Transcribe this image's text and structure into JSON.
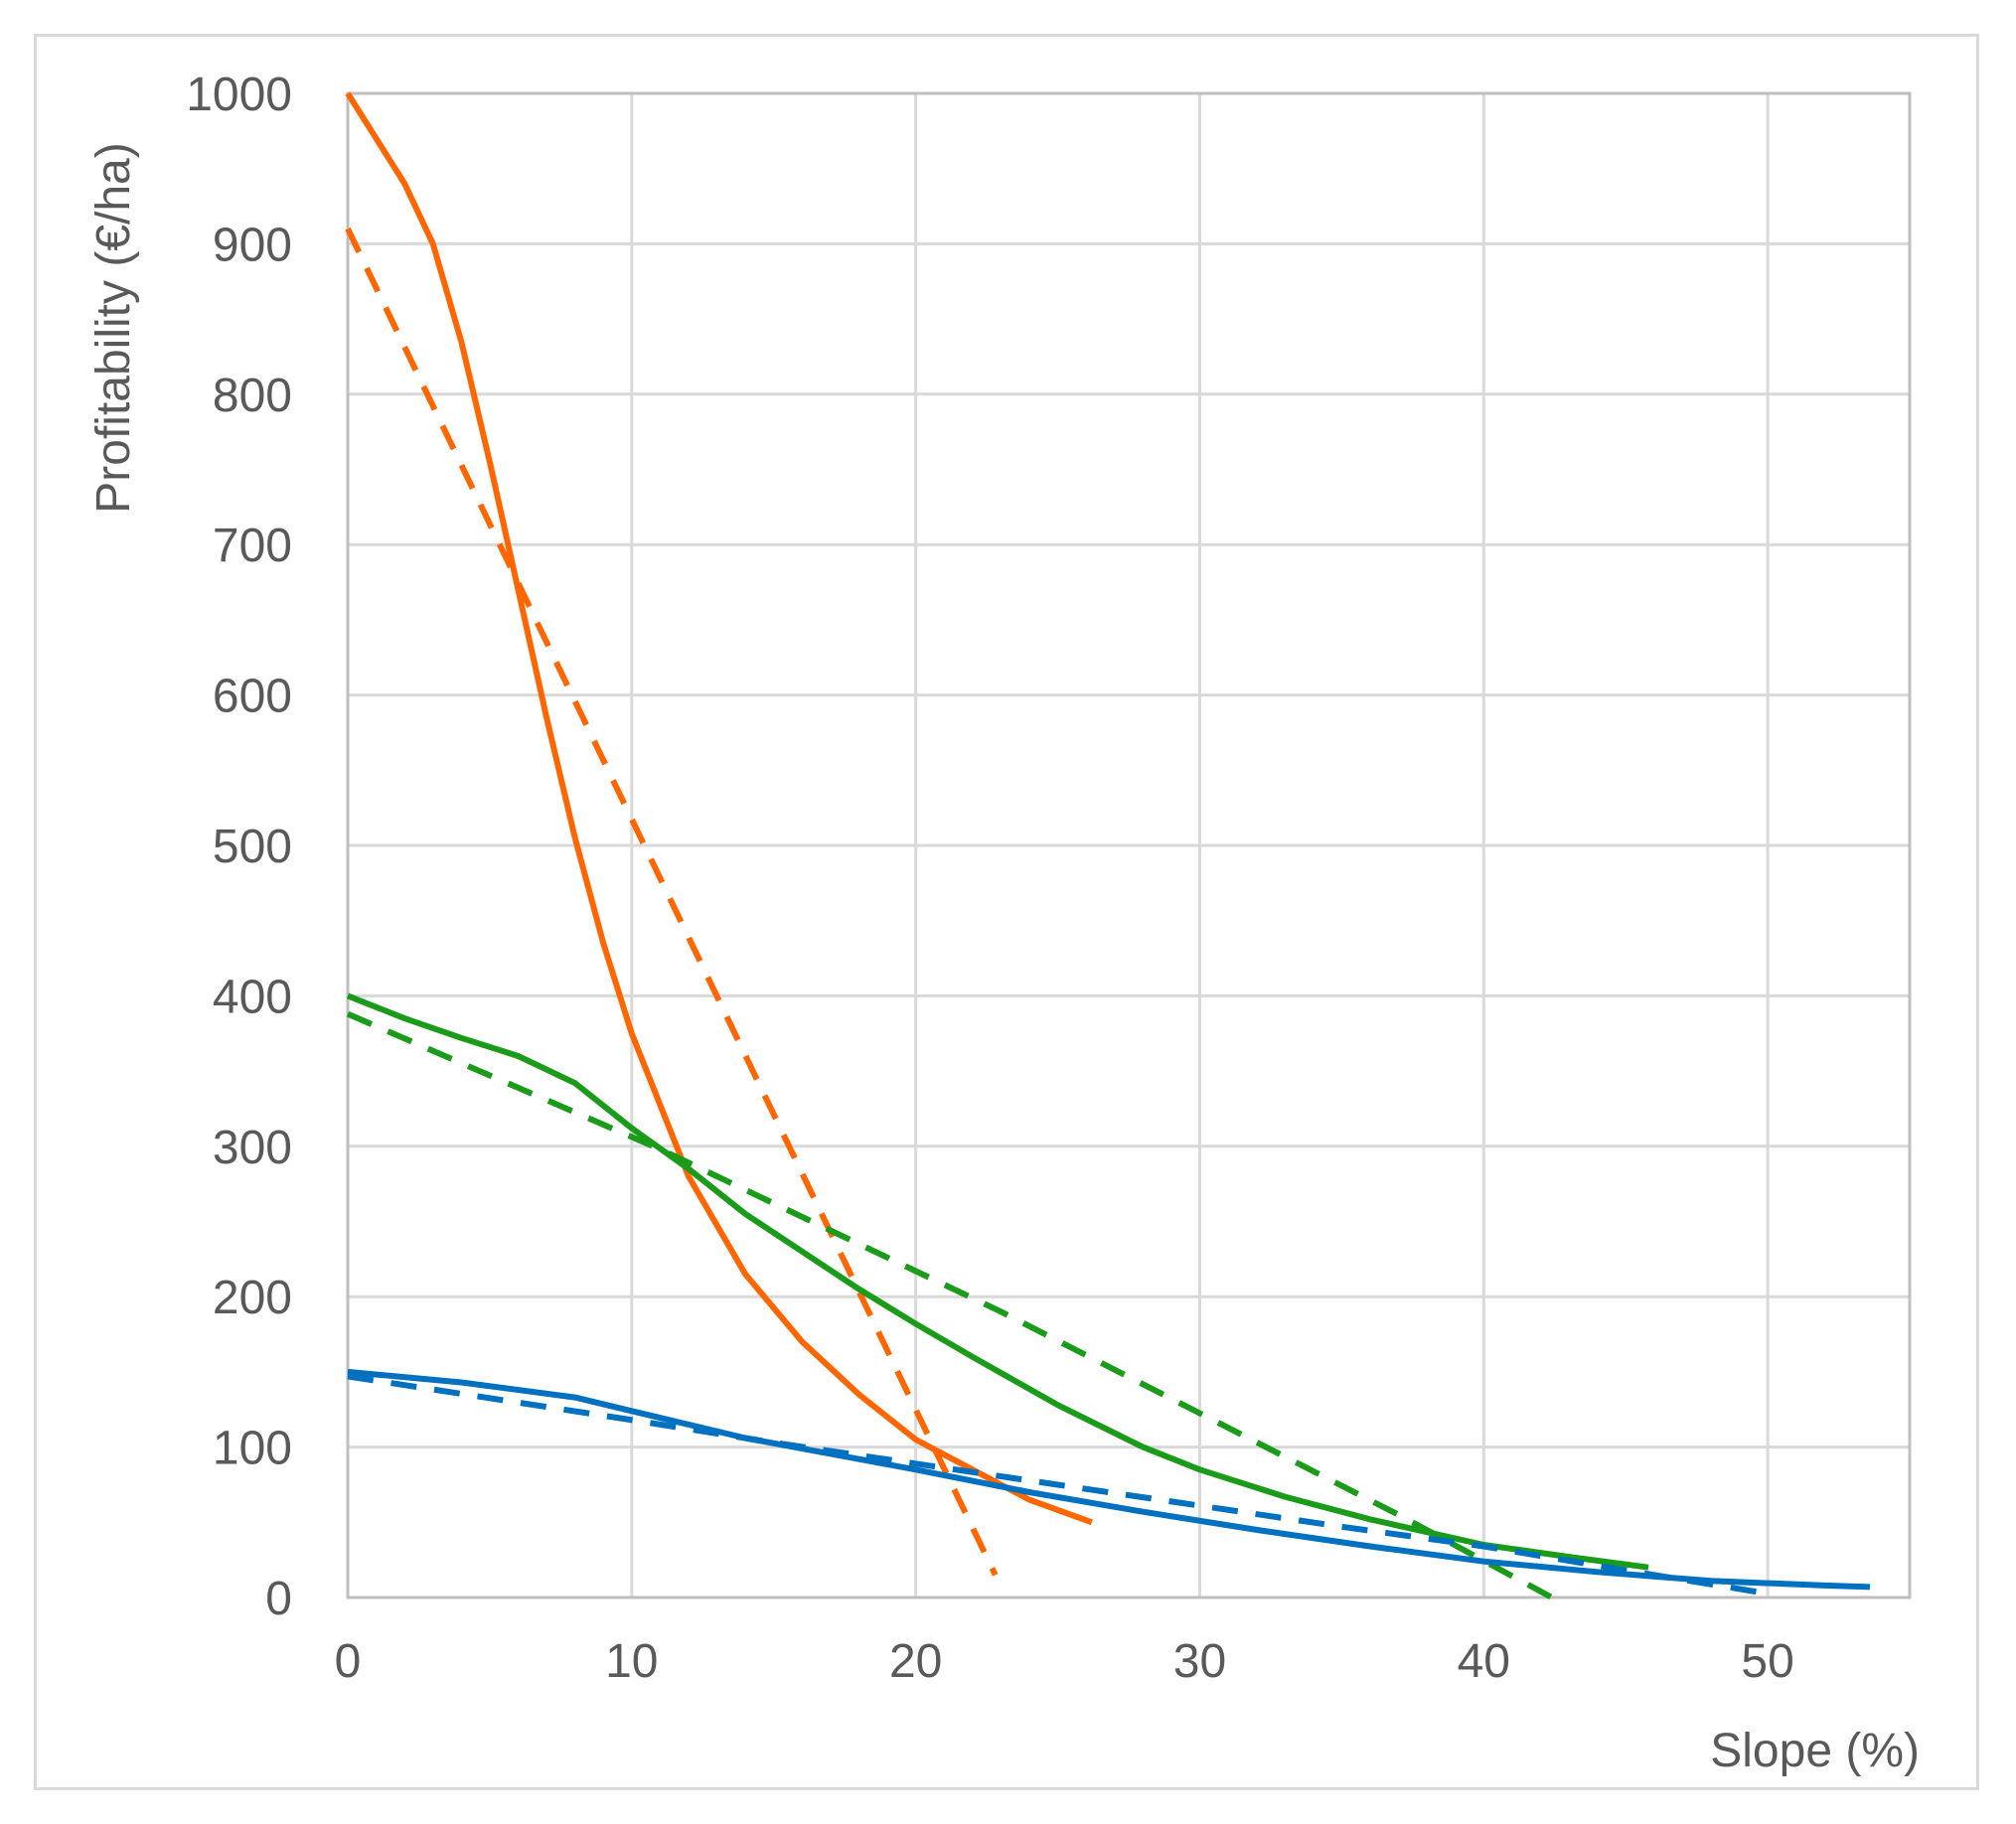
{
  "chart_data": {
    "type": "line",
    "title": "",
    "xlabel": "Slope (%)",
    "ylabel": "Profitability (€/ha)",
    "xlim": [
      0,
      55
    ],
    "ylim": [
      0,
      1000
    ],
    "xticks": [
      0,
      10,
      20,
      30,
      40,
      50
    ],
    "yticks": [
      0,
      100,
      200,
      300,
      400,
      500,
      600,
      700,
      800,
      900,
      1000
    ],
    "grid": true,
    "legend": "none",
    "series": [
      {
        "color": "#ff6600",
        "style": "solid",
        "x": [
          0,
          2,
          3,
          4,
          5,
          6,
          7,
          8,
          9,
          10,
          12,
          14,
          16,
          18,
          20,
          22,
          24,
          26.2
        ],
        "y": [
          1000,
          940,
          900,
          835,
          755,
          670,
          585,
          505,
          435,
          375,
          280,
          215,
          170,
          135,
          105,
          85,
          65,
          50
        ]
      },
      {
        "color": "#ff6600",
        "style": "dashed",
        "x": [
          0,
          22.8
        ],
        "y": [
          910,
          15
        ]
      },
      {
        "color": "#1a9b1a",
        "style": "solid",
        "x": [
          0,
          2,
          4,
          6,
          8,
          10,
          12,
          14,
          16,
          18,
          20,
          22,
          25,
          28,
          30,
          33,
          36,
          40,
          43,
          45.8
        ],
        "y": [
          400,
          385,
          372,
          360,
          342,
          312,
          285,
          255,
          230,
          205,
          182,
          160,
          128,
          100,
          85,
          67,
          52,
          35,
          27,
          20
        ]
      },
      {
        "color": "#1a9b1a",
        "style": "dashed",
        "x": [
          0,
          11,
          23,
          37,
          42.4
        ],
        "y": [
          388,
          298,
          190,
          55,
          0
        ]
      },
      {
        "color": "#0070c0",
        "style": "solid",
        "x": [
          0,
          4,
          8,
          10,
          14,
          18,
          20,
          24,
          28,
          32,
          36,
          40,
          44,
          48,
          52,
          53.6
        ],
        "y": [
          150,
          143,
          133,
          124,
          106,
          92,
          85,
          70,
          57,
          45,
          34,
          24,
          17,
          11,
          8,
          7
        ]
      },
      {
        "color": "#0070c0",
        "style": "dashed",
        "x": [
          0,
          10,
          15,
          20,
          25,
          30,
          35,
          40,
          45,
          50.2
        ],
        "y": [
          147,
          118,
          103,
          89,
          75,
          61,
          47,
          34,
          18,
          2
        ]
      }
    ]
  }
}
